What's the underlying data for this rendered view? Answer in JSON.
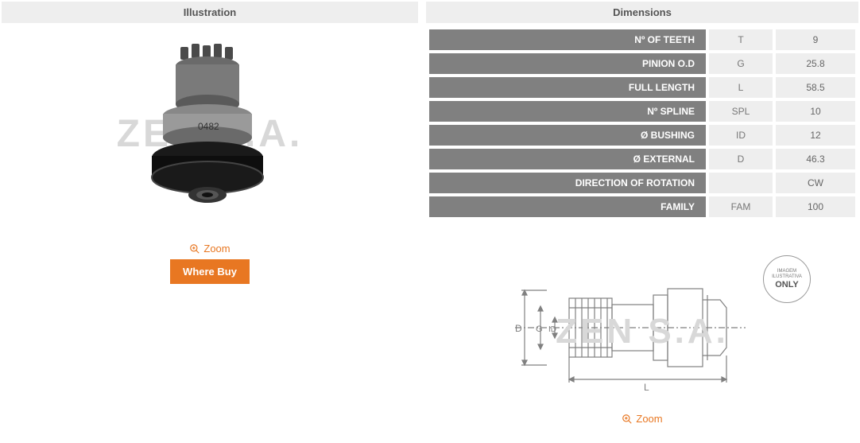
{
  "illustration": {
    "header": "Illustration",
    "zoom_label": "Zoom",
    "where_buy_label": "Where Buy",
    "watermark": "ZEN S.A.",
    "part_marking": "0482"
  },
  "dimensions": {
    "header": "Dimensions",
    "rows": [
      {
        "label": "Nº OF TEETH",
        "code": "T",
        "value": "9"
      },
      {
        "label": "PINION O.D",
        "code": "G",
        "value": "25.8"
      },
      {
        "label": "FULL LENGTH",
        "code": "L",
        "value": "58.5"
      },
      {
        "label": "Nº SPLINE",
        "code": "SPL",
        "value": "10"
      },
      {
        "label": "Ø BUSHING",
        "code": "ID",
        "value": "12"
      },
      {
        "label": "Ø EXTERNAL",
        "code": "D",
        "value": "46.3"
      },
      {
        "label": "DIRECTION OF ROTATION",
        "code": "",
        "value": "CW"
      },
      {
        "label": "FAMILY",
        "code": "FAM",
        "value": "100"
      }
    ],
    "zoom_label": "Zoom",
    "diagram_labels": {
      "D": "D",
      "G": "G",
      "ID": "ID",
      "L": "L"
    },
    "badge": {
      "line1": "IMAGEM",
      "line2": "ILUSTRATIVA",
      "line3": "ONLY"
    }
  },
  "colors": {
    "header_bg": "#eeeeee",
    "label_bg": "#808080",
    "cell_bg": "#eeeeee",
    "accent": "#e87722",
    "watermark": "#d8d8d8",
    "diagram_stroke": "#808080"
  }
}
